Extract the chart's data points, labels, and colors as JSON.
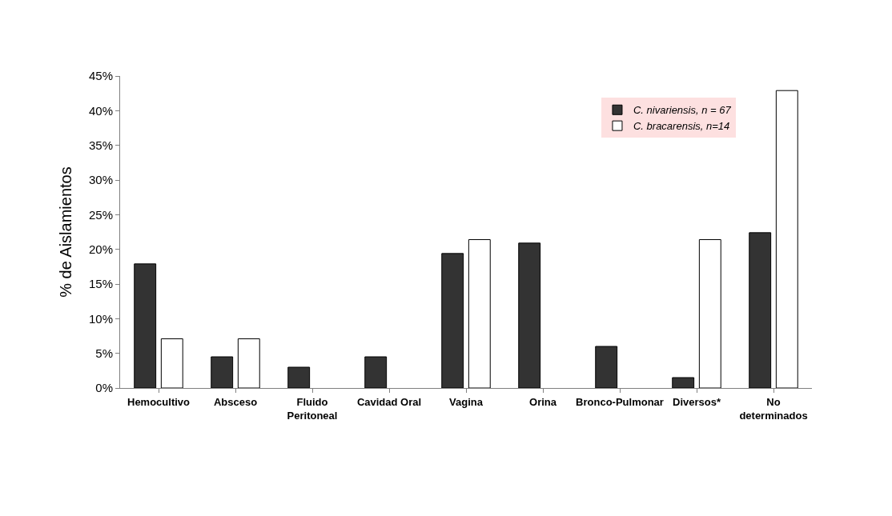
{
  "chart_data": {
    "type": "bar",
    "ylabel": "% de Aislamientos",
    "categories": [
      "Hemocultivo",
      "Absceso",
      "Fluido\nPeritoneal",
      "Cavidad Oral",
      "Vagina",
      "Orina",
      "Bronco-Pulmonar",
      "Diversos*",
      "No\ndeterminados"
    ],
    "series": [
      {
        "name": "C. nivariensis, n = 67",
        "color": "#333333",
        "values": [
          17.9,
          4.5,
          3.0,
          4.5,
          19.4,
          20.9,
          6.0,
          1.5,
          22.4
        ]
      },
      {
        "name": "C. bracarensis, n=14",
        "color": "#ffffff",
        "values": [
          7.1,
          7.1,
          null,
          null,
          21.4,
          null,
          null,
          21.4,
          42.9
        ]
      }
    ],
    "ylim": [
      0,
      45
    ],
    "yticks": [
      {
        "value": 0,
        "label": "0%"
      },
      {
        "value": 5,
        "label": "5%"
      },
      {
        "value": 10,
        "label": "10%"
      },
      {
        "value": 15,
        "label": "15%"
      },
      {
        "value": 20,
        "label": "20%"
      },
      {
        "value": 25,
        "label": "25%"
      },
      {
        "value": 30,
        "label": "30%"
      },
      {
        "value": 35,
        "label": "35%"
      },
      {
        "value": 40,
        "label": "40%"
      },
      {
        "value": 45,
        "label": "45%"
      }
    ],
    "grid": false,
    "legend": "top right"
  }
}
